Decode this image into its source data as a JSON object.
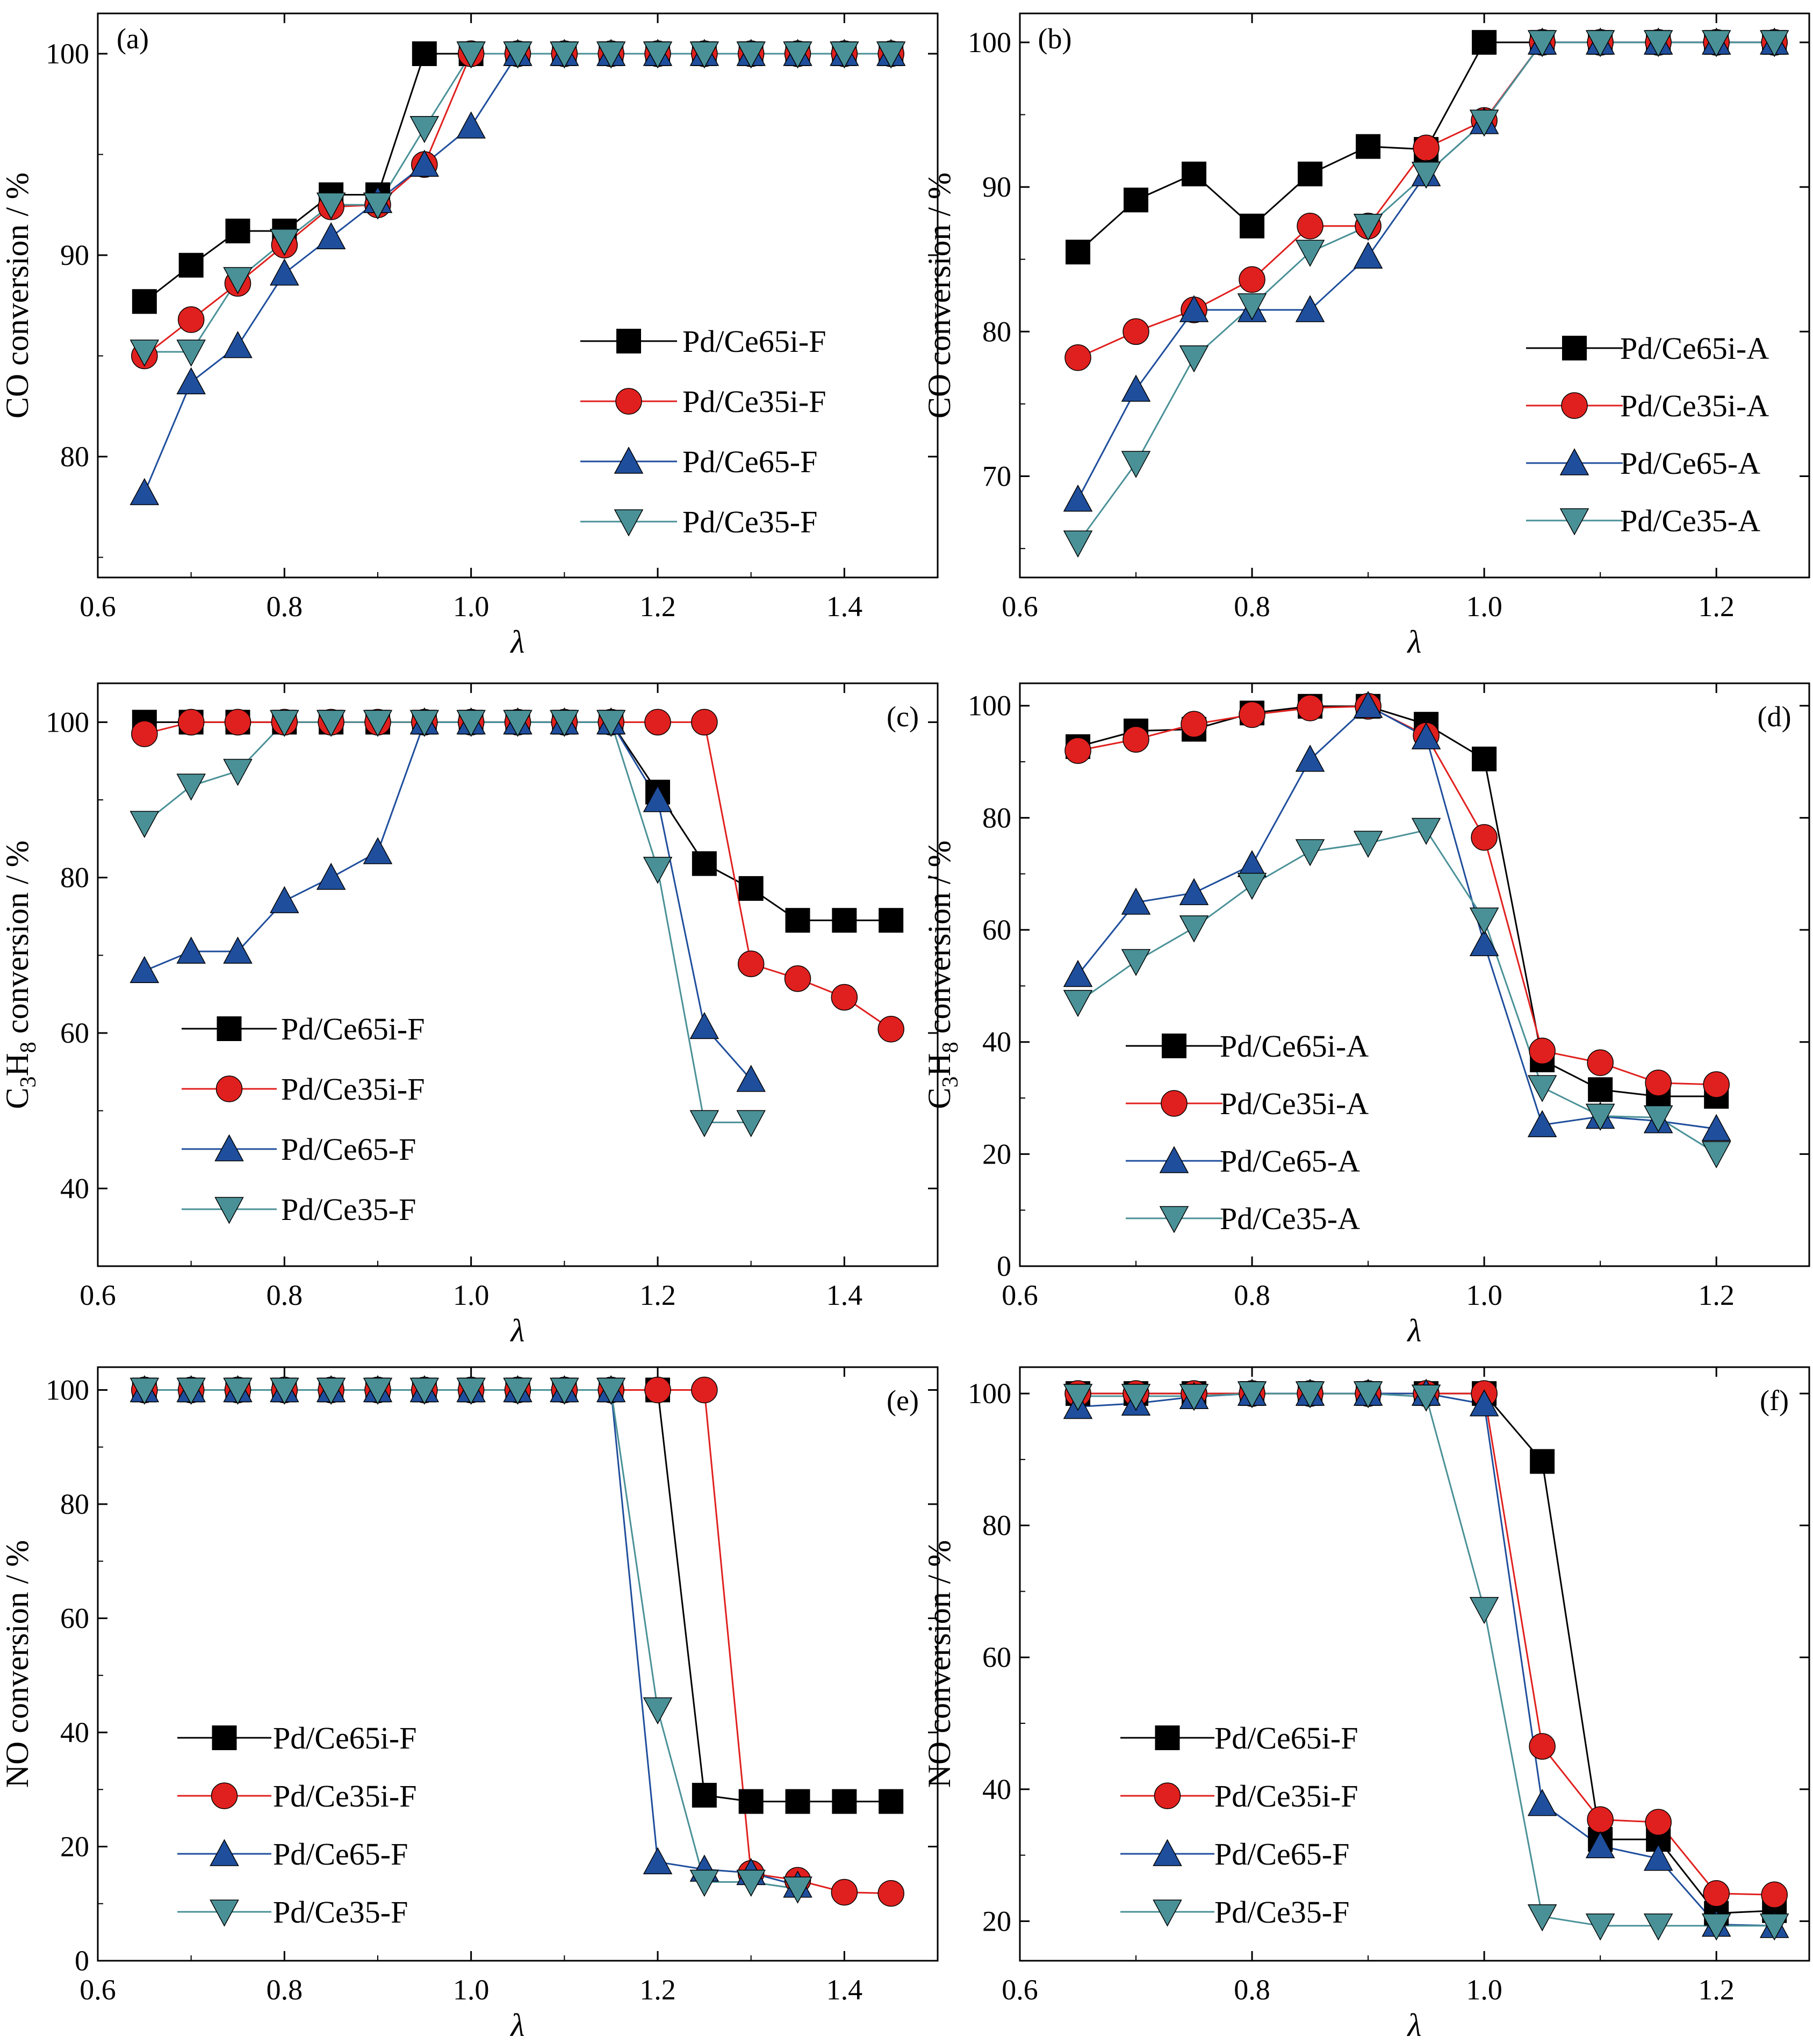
{
  "chart_data": [
    {
      "panel": "(a)",
      "type": "line",
      "xlabel": "λ",
      "ylabel": "CO conversion / %",
      "xlim": [
        0.6,
        1.5
      ],
      "ylim": [
        74,
        102
      ],
      "xticks": [
        "0.6",
        "0.8",
        "1.0",
        "1.2",
        "1.4"
      ],
      "yticks": [
        "80",
        "90",
        "100"
      ],
      "legend_position": "center-right",
      "series": [
        {
          "name": "Pd/Ce65i-F",
          "marker": "square",
          "color": "#000000",
          "x": [
            0.65,
            0.7,
            0.75,
            0.8,
            0.85,
            0.9,
            0.95,
            1.0,
            1.05,
            1.1,
            1.15,
            1.2,
            1.25,
            1.3,
            1.35,
            1.4,
            1.45
          ],
          "y": [
            87.7,
            89.5,
            91.2,
            91.2,
            93.0,
            93.0,
            100,
            100,
            100,
            100,
            100,
            100,
            100,
            100,
            100,
            100,
            100
          ]
        },
        {
          "name": "Pd/Ce35i-F",
          "marker": "circle",
          "color": "#e0201e",
          "x": [
            0.65,
            0.7,
            0.75,
            0.8,
            0.85,
            0.9,
            0.95,
            1.0,
            1.05,
            1.1,
            1.15,
            1.2,
            1.25,
            1.3,
            1.35,
            1.4,
            1.45
          ],
          "y": [
            85.0,
            86.8,
            88.6,
            90.5,
            92.4,
            92.5,
            94.5,
            100,
            100,
            100,
            100,
            100,
            100,
            100,
            100,
            100,
            100
          ]
        },
        {
          "name": "Pd/Ce65-F",
          "marker": "triangle-up",
          "color": "#1f4e9c",
          "x": [
            0.65,
            0.7,
            0.75,
            0.8,
            0.85,
            0.9,
            0.95,
            1.0,
            1.05,
            1.1,
            1.15,
            1.2,
            1.25,
            1.3,
            1.35,
            1.4,
            1.45
          ],
          "y": [
            78.2,
            83.7,
            85.5,
            89.1,
            90.9,
            92.7,
            94.5,
            96.4,
            100,
            100,
            100,
            100,
            100,
            100,
            100,
            100,
            100
          ]
        },
        {
          "name": "Pd/Ce35-F",
          "marker": "triangle-down",
          "color": "#4a9197",
          "x": [
            0.65,
            0.7,
            0.75,
            0.8,
            0.85,
            0.9,
            0.95,
            1.0,
            1.05,
            1.1,
            1.15,
            1.2,
            1.25,
            1.3,
            1.35,
            1.4,
            1.45
          ],
          "y": [
            85.2,
            85.2,
            88.8,
            90.7,
            92.5,
            92.5,
            96.3,
            100,
            100,
            100,
            100,
            100,
            100,
            100,
            100,
            100,
            100
          ]
        }
      ]
    },
    {
      "panel": "(b)",
      "type": "line",
      "xlabel": "λ",
      "ylabel": "CO conversion / %",
      "xlim": [
        0.6,
        1.28
      ],
      "ylim": [
        63,
        102
      ],
      "xticks": [
        "0.6",
        "0.8",
        "1.0",
        "1.2"
      ],
      "yticks": [
        "70",
        "80",
        "90",
        "100"
      ],
      "legend_position": "center-right",
      "series": [
        {
          "name": "Pd/Ce65i-A",
          "marker": "square",
          "color": "#000000",
          "x": [
            0.65,
            0.7,
            0.75,
            0.8,
            0.85,
            0.9,
            0.95,
            1.0,
            1.05,
            1.1,
            1.15,
            1.2,
            1.25
          ],
          "y": [
            85.5,
            89.1,
            90.9,
            87.3,
            90.9,
            92.8,
            92.6,
            100,
            100,
            100,
            100,
            100,
            100
          ]
        },
        {
          "name": "Pd/Ce35i-A",
          "marker": "circle",
          "color": "#e0201e",
          "x": [
            0.65,
            0.7,
            0.75,
            0.8,
            0.85,
            0.9,
            0.95,
            1.0,
            1.05,
            1.1,
            1.15,
            1.2,
            1.25
          ],
          "y": [
            78.2,
            80.0,
            81.5,
            83.6,
            87.3,
            87.3,
            92.7,
            94.6,
            100,
            100,
            100,
            100,
            100
          ]
        },
        {
          "name": "Pd/Ce65-A",
          "marker": "triangle-up",
          "color": "#1f4e9c",
          "x": [
            0.65,
            0.7,
            0.75,
            0.8,
            0.85,
            0.9,
            0.95,
            1.0,
            1.05,
            1.1,
            1.15,
            1.2,
            1.25
          ],
          "y": [
            68.4,
            76.0,
            81.5,
            81.5,
            81.5,
            85.2,
            90.9,
            94.5,
            100,
            100,
            100,
            100,
            100
          ]
        },
        {
          "name": "Pd/Ce35-A",
          "marker": "triangle-down",
          "color": "#4a9197",
          "x": [
            0.65,
            0.7,
            0.75,
            0.8,
            0.85,
            0.9,
            0.95,
            1.0,
            1.05,
            1.1,
            1.15,
            1.2,
            1.25
          ],
          "y": [
            65.4,
            70.9,
            78.2,
            81.8,
            85.5,
            87.3,
            90.9,
            94.5,
            100,
            100,
            100,
            100,
            100
          ]
        }
      ]
    },
    {
      "panel": "(c)",
      "type": "line",
      "xlabel": "λ",
      "ylabel": "C3H8 conversion / %",
      "xlim": [
        0.6,
        1.5
      ],
      "ylim": [
        30,
        105
      ],
      "xticks": [
        "0.6",
        "0.8",
        "1.0",
        "1.2",
        "1.4"
      ],
      "yticks": [
        "40",
        "60",
        "80",
        "100"
      ],
      "legend_position": "lower-left",
      "series": [
        {
          "name": "Pd/Ce65i-F",
          "marker": "square",
          "color": "#000000",
          "x": [
            0.65,
            0.7,
            0.75,
            0.8,
            0.85,
            0.9,
            0.95,
            1.0,
            1.05,
            1.1,
            1.15,
            1.2,
            1.25,
            1.3,
            1.35,
            1.4,
            1.45
          ],
          "y": [
            100,
            100,
            100,
            100,
            100,
            100,
            100,
            100,
            100,
            100,
            100,
            91.0,
            81.8,
            78.6,
            74.5,
            74.5,
            74.5
          ]
        },
        {
          "name": "Pd/Ce35i-F",
          "marker": "circle",
          "color": "#e0201e",
          "x": [
            0.65,
            0.7,
            0.75,
            0.8,
            0.85,
            0.9,
            0.95,
            1.0,
            1.05,
            1.1,
            1.15,
            1.2,
            1.25,
            1.3,
            1.35,
            1.4,
            1.45
          ],
          "y": [
            98.5,
            100,
            100,
            100,
            100,
            100,
            100,
            100,
            100,
            100,
            100,
            100,
            100,
            68.9,
            67.0,
            64.6,
            60.5
          ]
        },
        {
          "name": "Pd/Ce65-F",
          "marker": "triangle-up",
          "color": "#1f4e9c",
          "x": [
            0.65,
            0.7,
            0.75,
            0.8,
            0.85,
            0.9,
            0.95,
            1.0,
            1.05,
            1.1,
            1.15,
            1.2,
            1.25,
            1.3
          ],
          "y": [
            68.0,
            70.5,
            70.5,
            77.0,
            80.0,
            83.3,
            100,
            100,
            100,
            100,
            100,
            90.0,
            60.8,
            54.0
          ]
        },
        {
          "name": "Pd/Ce35-F",
          "marker": "triangle-down",
          "color": "#4a9197",
          "x": [
            0.65,
            0.7,
            0.75,
            0.8,
            0.85,
            0.9,
            0.95,
            1.0,
            1.05,
            1.1,
            1.15,
            1.2,
            1.25,
            1.3
          ],
          "y": [
            87.0,
            91.8,
            93.7,
            100,
            100,
            100,
            100,
            100,
            100,
            100,
            100,
            81.1,
            48.5,
            48.5
          ]
        }
      ]
    },
    {
      "panel": "(d)",
      "type": "line",
      "xlabel": "λ",
      "ylabel": "C3H8 conversion / %",
      "xlim": [
        0.6,
        1.28
      ],
      "ylim": [
        0,
        104
      ],
      "xticks": [
        "0.6",
        "0.8",
        "1.0",
        "1.2"
      ],
      "yticks": [
        "0",
        "20",
        "40",
        "60",
        "80",
        "100"
      ],
      "legend_position": "lower-left",
      "series": [
        {
          "name": "Pd/Ce65i-A",
          "marker": "square",
          "color": "#000000",
          "x": [
            0.65,
            0.7,
            0.75,
            0.8,
            0.85,
            0.9,
            0.95,
            1.0,
            1.05,
            1.1,
            1.15,
            1.2
          ],
          "y": [
            92.7,
            95.5,
            95.8,
            98.7,
            99.9,
            99.9,
            96.7,
            90.5,
            36.8,
            31.5,
            30.3,
            30.3
          ]
        },
        {
          "name": "Pd/Ce35i-A",
          "marker": "circle",
          "color": "#e0201e",
          "x": [
            0.65,
            0.7,
            0.75,
            0.8,
            0.85,
            0.9,
            0.95,
            1.0,
            1.05,
            1.1,
            1.15,
            1.2
          ],
          "y": [
            92.0,
            94.0,
            96.7,
            98.4,
            99.6,
            99.9,
            94.7,
            76.5,
            38.4,
            36.3,
            32.7,
            32.4
          ]
        },
        {
          "name": "Pd/Ce65-A",
          "marker": "triangle-up",
          "color": "#1f4e9c",
          "x": [
            0.65,
            0.7,
            0.75,
            0.8,
            0.85,
            0.9,
            0.95,
            1.0,
            1.05,
            1.1,
            1.15,
            1.2
          ],
          "y": [
            52.0,
            64.9,
            66.6,
            71.6,
            90.4,
            100,
            94.4,
            57.5,
            25.2,
            26.7,
            25.9,
            24.5
          ]
        },
        {
          "name": "Pd/Ce35-A",
          "marker": "triangle-down",
          "color": "#4a9197",
          "x": [
            0.65,
            0.7,
            0.75,
            0.8,
            0.85,
            0.9,
            0.95,
            1.0,
            1.05,
            1.1,
            1.15,
            1.2
          ],
          "y": [
            47.1,
            54.4,
            60.4,
            68.0,
            74.0,
            75.5,
            77.8,
            61.8,
            31.9,
            26.8,
            26.5,
            20.1
          ]
        }
      ]
    },
    {
      "panel": "(e)",
      "type": "line",
      "xlabel": "λ",
      "ylabel": "NO conversion / %",
      "xlim": [
        0.6,
        1.5
      ],
      "ylim": [
        0,
        104
      ],
      "xticks": [
        "0.6",
        "0.8",
        "1.0",
        "1.2",
        "1.4"
      ],
      "yticks": [
        "0",
        "20",
        "40",
        "60",
        "80",
        "100"
      ],
      "legend_position": "lower-left",
      "series": [
        {
          "name": "Pd/Ce65i-F",
          "marker": "square",
          "color": "#000000",
          "x": [
            0.65,
            0.7,
            0.75,
            0.8,
            0.85,
            0.9,
            0.95,
            1.0,
            1.05,
            1.1,
            1.15,
            1.2,
            1.25,
            1.3,
            1.35,
            1.4,
            1.45
          ],
          "y": [
            100,
            100,
            100,
            100,
            100,
            100,
            100,
            100,
            100,
            100,
            100,
            100,
            29.0,
            27.9,
            27.9,
            27.9,
            27.9
          ]
        },
        {
          "name": "Pd/Ce35i-F",
          "marker": "circle",
          "color": "#e0201e",
          "x": [
            0.65,
            0.7,
            0.75,
            0.8,
            0.85,
            0.9,
            0.95,
            1.0,
            1.05,
            1.1,
            1.15,
            1.2,
            1.25,
            1.3,
            1.35,
            1.4,
            1.45
          ],
          "y": [
            100,
            100,
            100,
            100,
            100,
            100,
            100,
            100,
            100,
            100,
            100,
            100,
            100,
            15.3,
            14.1,
            12.0,
            11.8
          ]
        },
        {
          "name": "Pd/Ce65-F",
          "marker": "triangle-up",
          "color": "#1f4e9c",
          "x": [
            0.65,
            0.7,
            0.75,
            0.8,
            0.85,
            0.9,
            0.95,
            1.0,
            1.05,
            1.1,
            1.15,
            1.2,
            1.25,
            1.3,
            1.35
          ],
          "y": [
            100,
            100,
            100,
            100,
            100,
            100,
            100,
            100,
            100,
            100,
            100,
            17.3,
            16.0,
            15.4,
            13.2
          ]
        },
        {
          "name": "Pd/Ce35-F",
          "marker": "triangle-down",
          "color": "#4a9197",
          "x": [
            0.65,
            0.7,
            0.75,
            0.8,
            0.85,
            0.9,
            0.95,
            1.0,
            1.05,
            1.1,
            1.15,
            1.2,
            1.25,
            1.3,
            1.35
          ],
          "y": [
            100,
            100,
            100,
            100,
            100,
            100,
            100,
            100,
            100,
            100,
            100,
            44.0,
            13.8,
            13.8,
            12.6
          ]
        }
      ]
    },
    {
      "panel": "(f)",
      "type": "line",
      "xlabel": "λ",
      "ylabel": "NO conversion / %",
      "xlim": [
        0.6,
        1.28
      ],
      "ylim": [
        14,
        104
      ],
      "xticks": [
        "0.6",
        "0.8",
        "1.0",
        "1.2"
      ],
      "yticks": [
        "20",
        "40",
        "60",
        "80",
        "100"
      ],
      "legend_position": "lower-left",
      "series": [
        {
          "name": "Pd/Ce65i-F",
          "marker": "square",
          "color": "#000000",
          "x": [
            0.65,
            0.7,
            0.75,
            0.8,
            0.85,
            0.9,
            0.95,
            1.0,
            1.05,
            1.1,
            1.15,
            1.2,
            1.25
          ],
          "y": [
            100,
            100,
            100,
            100,
            100,
            100,
            100,
            100,
            89.7,
            32.4,
            32.4,
            21.2,
            21.6
          ]
        },
        {
          "name": "Pd/Ce35i-F",
          "marker": "circle",
          "color": "#e0201e",
          "x": [
            0.65,
            0.7,
            0.75,
            0.8,
            0.85,
            0.9,
            0.95,
            1.0,
            1.05,
            1.1,
            1.15,
            1.2,
            1.25
          ],
          "y": [
            100,
            100,
            100,
            100,
            100,
            100,
            100,
            100,
            46.5,
            35.4,
            35.0,
            24.2,
            24.0
          ]
        },
        {
          "name": "Pd/Ce65-F",
          "marker": "triangle-up",
          "color": "#1f4e9c",
          "x": [
            0.65,
            0.7,
            0.75,
            0.8,
            0.85,
            0.9,
            0.95,
            1.0,
            1.05,
            1.1,
            1.15,
            1.2,
            1.25
          ],
          "y": [
            98.0,
            98.5,
            99.5,
            100,
            100,
            100,
            100,
            98.4,
            37.8,
            31.4,
            29.5,
            19.5,
            19.3
          ]
        },
        {
          "name": "Pd/Ce35-F",
          "marker": "triangle-down",
          "color": "#4a9197",
          "x": [
            0.65,
            0.7,
            0.75,
            0.8,
            0.85,
            0.9,
            0.95,
            1.0,
            1.05,
            1.1,
            1.15,
            1.2,
            1.25
          ],
          "y": [
            99.6,
            99.6,
            99.6,
            100,
            100,
            100,
            99.5,
            67.3,
            20.7,
            19.3,
            19.3,
            19.3,
            19.3
          ]
        }
      ]
    }
  ]
}
